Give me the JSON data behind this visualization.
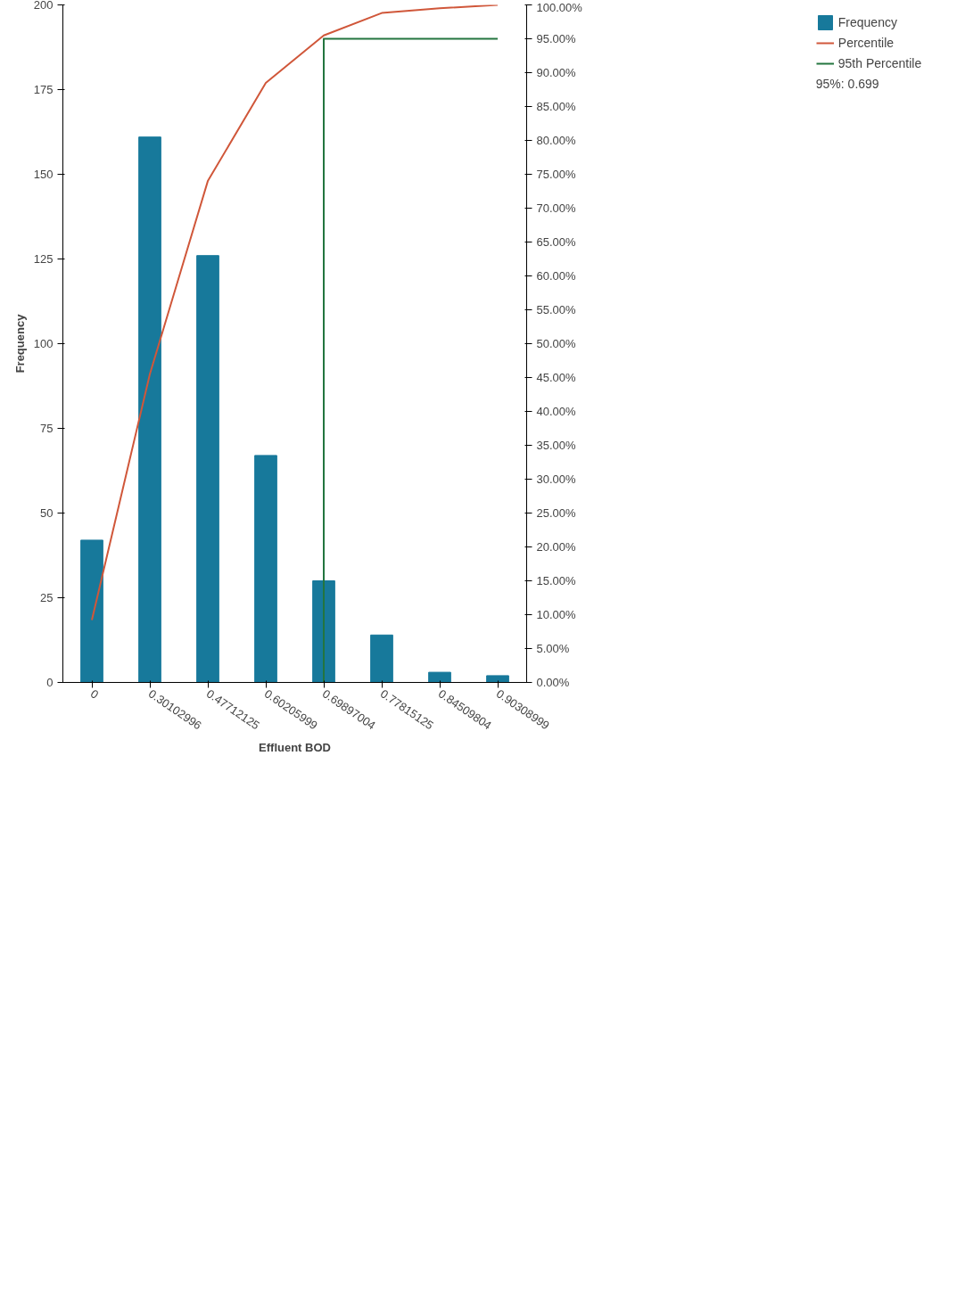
{
  "chart_data": {
    "type": "bar",
    "xlabel": "Effluent BOD",
    "ylabel": "Frequency",
    "categories": [
      "0",
      "0.30102996",
      "0.47712125",
      "0.60205999",
      "0.69897004",
      "0.77815125",
      "0.84509804",
      "0.90308999"
    ],
    "series": [
      {
        "name": "Frequency",
        "type": "bar",
        "color": "#17799b",
        "values": [
          42,
          161,
          126,
          67,
          30,
          14,
          3,
          2
        ]
      },
      {
        "name": "Percentile",
        "type": "line",
        "axis": "y2",
        "color": "#d0573a",
        "values": [
          9.2,
          45.5,
          74,
          88.5,
          95.5,
          98.8,
          99.5,
          100
        ]
      },
      {
        "name": "95th Percentile",
        "type": "line",
        "axis": "y2",
        "color": "#23753f",
        "x": [
          "0.69897004",
          "0.69897004",
          "0.90308999"
        ],
        "values": [
          0,
          95,
          95
        ]
      }
    ],
    "ylim": [
      0,
      200
    ],
    "yticks": [
      0,
      25,
      50,
      75,
      100,
      125,
      150,
      175,
      200
    ],
    "y2lim": [
      0,
      100
    ],
    "y2ticks": [
      {
        "value": 0,
        "label": "0.00%"
      },
      {
        "value": 5,
        "label": "5.00%"
      },
      {
        "value": 10,
        "label": "10.00%"
      },
      {
        "value": 15,
        "label": "15.00%"
      },
      {
        "value": 20,
        "label": "20.00%"
      },
      {
        "value": 25,
        "label": "25.00%"
      },
      {
        "value": 30,
        "label": "30.00%"
      },
      {
        "value": 35,
        "label": "35.00%"
      },
      {
        "value": 40,
        "label": "40.00%"
      },
      {
        "value": 45,
        "label": "45.00%"
      },
      {
        "value": 50,
        "label": "50.00%"
      },
      {
        "value": 55,
        "label": "55.00%"
      },
      {
        "value": 60,
        "label": "60.00%"
      },
      {
        "value": 65,
        "label": "65.00%"
      },
      {
        "value": 70,
        "label": "70.00%"
      },
      {
        "value": 75,
        "label": "75.00%"
      },
      {
        "value": 80,
        "label": "80.00%"
      },
      {
        "value": 85,
        "label": "85.00%"
      },
      {
        "value": 90,
        "label": "90.00%"
      },
      {
        "value": 95,
        "label": "95.00%"
      },
      {
        "value": 100,
        "label": "100.00%"
      }
    ],
    "annotations": [
      "95%: 0.699"
    ],
    "legend": "right",
    "grid": false,
    "marker": "none",
    "line_style": "solid"
  }
}
